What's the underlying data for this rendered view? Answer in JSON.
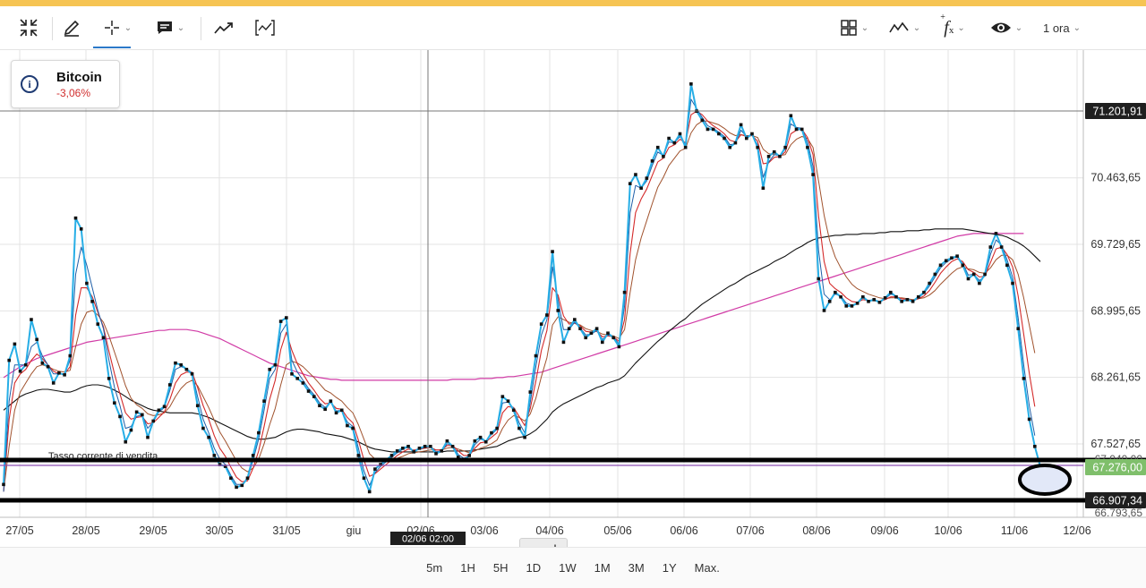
{
  "toolbar": {
    "tools": [
      {
        "name": "fullscreen-exit-icon"
      },
      {
        "name": "pencil-icon"
      },
      {
        "name": "crosshair-icon"
      },
      {
        "name": "comment-icon"
      },
      {
        "name": "trend-icon"
      },
      {
        "name": "indicator-icon"
      }
    ],
    "right_tools": [
      {
        "name": "layout-grid-icon"
      },
      {
        "name": "chart-type-icon"
      },
      {
        "name": "function-icon"
      },
      {
        "name": "eye-icon"
      }
    ],
    "interval_label": "1 ora",
    "function_symbol": "f",
    "function_sub": "x",
    "function_sup": "+"
  },
  "info": {
    "name": "Bitcoin",
    "change": "-3,06%"
  },
  "chart_data": {
    "type": "line",
    "symbol": "Bitcoin",
    "interval": "1 ora",
    "y_ticks": [
      "71.201,91",
      "70.463,65",
      "69.729,65",
      "68.995,65",
      "68.261,65",
      "67.527,65",
      "67.276,00",
      "66.907,34",
      "66.793,65"
    ],
    "y_tick_values": [
      71201.91,
      70463.65,
      69729.65,
      68995.65,
      68261.65,
      67527.65,
      67276.0,
      66907.34,
      66793.65
    ],
    "ylim": [
      66750,
      71750
    ],
    "x_labels": [
      "27/05",
      "28/05",
      "29/05",
      "30/05",
      "31/05",
      "giu",
      "02/06",
      "03/06",
      "04/06",
      "05/06",
      "06/06",
      "07/06",
      "08/06",
      "09/06",
      "10/06",
      "11/06",
      "12/06"
    ],
    "crosshair_label": "02/06 02:00",
    "price_labels": {
      "high_line": "71.201,91",
      "current": "67.276,00",
      "low_line": "66.907,34",
      "partial": "67.040,00"
    },
    "annotation": "Tasso corrente di vendita",
    "colors": {
      "price": "#27aee6",
      "ma_fast": "#1f5fa8",
      "ma_red": "#d42a2a",
      "ma_brown": "#a0522d",
      "ma_black": "#111111",
      "ma_magenta": "#d13ba6",
      "current_price_bg": "#7fbf6b"
    },
    "price_series": [
      67080,
      68450,
      68630,
      68330,
      68400,
      68900,
      68680,
      68420,
      68380,
      68200,
      68310,
      68290,
      68500,
      70020,
      69900,
      69300,
      69100,
      68850,
      68700,
      68250,
      67980,
      67830,
      67550,
      67680,
      67880,
      67850,
      67600,
      67780,
      67900,
      67940,
      68180,
      68420,
      68400,
      68350,
      68300,
      67950,
      67700,
      67600,
      67400,
      67300,
      67280,
      67150,
      67050,
      67070,
      67150,
      67400,
      67650,
      68000,
      68350,
      68400,
      68880,
      68920,
      68300,
      68250,
      68200,
      68110,
      68050,
      67950,
      67910,
      68000,
      67870,
      67900,
      67730,
      67700,
      67400,
      67150,
      67000,
      67250,
      67300,
      67350,
      67400,
      67450,
      67480,
      67500,
      67440,
      67480,
      67500,
      67500,
      67420,
      67450,
      67560,
      67500,
      67380,
      67350,
      67400,
      67560,
      67600,
      67550,
      67650,
      67700,
      68050,
      68000,
      67900,
      67700,
      67600,
      68100,
      68500,
      68850,
      68950,
      69650,
      69000,
      68650,
      68800,
      68900,
      68800,
      68700,
      68750,
      68800,
      68650,
      68750,
      68700,
      68600,
      69200,
      70400,
      70500,
      70350,
      70460,
      70650,
      70800,
      70700,
      70900,
      70850,
      70950,
      70800,
      71500,
      71200,
      71100,
      71000,
      71000,
      70950,
      70900,
      70800,
      70850,
      71050,
      70900,
      70950,
      70800,
      70350,
      70700,
      70750,
      70700,
      70800,
      71150,
      71000,
      71000,
      70800,
      70500,
      69350,
      69000,
      69100,
      69200,
      69150,
      69050,
      69050,
      69080,
      69150,
      69100,
      69120,
      69090,
      69140,
      69200,
      69150,
      69100,
      69120,
      69100,
      69150,
      69200,
      69300,
      69400,
      69500,
      69550,
      69580,
      69600,
      69500,
      69350,
      69400,
      69300,
      69400,
      69700,
      69850,
      69700,
      69500,
      69300,
      68800,
      68250,
      67800,
      67500,
      67276
    ],
    "ma_fast": [
      67000,
      68000,
      68400,
      68400,
      68400,
      68600,
      68650,
      68500,
      68400,
      68300,
      68300,
      68300,
      68450,
      69400,
      69700,
      69500,
      69250,
      69000,
      68800,
      68450,
      68150,
      67950,
      67700,
      67720,
      67830,
      67850,
      67700,
      67770,
      67880,
      67930,
      68120,
      68350,
      68380,
      68360,
      68310,
      68050,
      67800,
      67650,
      67480,
      67360,
      67300,
      67180,
      67080,
      67080,
      67140,
      67350,
      67580,
      67900,
      68250,
      68350,
      68750,
      68850,
      68450,
      68320,
      68230,
      68140,
      68070,
      67980,
      67930,
      67990,
      67890,
      67900,
      67770,
      67720,
      67480,
      67230,
      67070,
      67210,
      67280,
      67330,
      67380,
      67430,
      67470,
      67490,
      67450,
      67470,
      67490,
      67500,
      67440,
      67450,
      67530,
      67510,
      67410,
      67370,
      67390,
      67520,
      67580,
      67560,
      67630,
      67690,
      67980,
      67990,
      67920,
      67760,
      67650,
      67990,
      68380,
      68730,
      68900,
      69480,
      69120,
      68790,
      68790,
      68870,
      68810,
      68730,
      68740,
      68780,
      68680,
      68730,
      68710,
      68630,
      69050,
      70080,
      70380,
      70350,
      70430,
      70600,
      70750,
      70710,
      70860,
      70850,
      70920,
      70830,
      71330,
      71230,
      71130,
      71040,
      71010,
      70970,
      70920,
      70830,
      70840,
      70990,
      70920,
      70940,
      70830,
      70470,
      70640,
      70720,
      70710,
      70780,
      71060,
      71020,
      71010,
      70860,
      70590,
      69660,
      69180,
      69120,
      69180,
      69160,
      69080,
      69060,
      69080,
      69140,
      69110,
      69120,
      69100,
      69130,
      69180,
      69160,
      69110,
      69120,
      69110,
      69140,
      69190,
      69270,
      69370,
      69470,
      69530,
      69570,
      69590,
      69520,
      69390,
      69400,
      69330,
      69380,
      69620,
      69780,
      69720,
      69560,
      69370,
      68920,
      68400,
      67950,
      67620
    ],
    "ma_red": [
      67000,
      67800,
      68200,
      68300,
      68350,
      68450,
      68520,
      68470,
      68400,
      68330,
      68300,
      68300,
      68380,
      68950,
      69250,
      69250,
      69150,
      68980,
      68820,
      68550,
      68300,
      68080,
      67870,
      67800,
      67820,
      67830,
      67750,
      67760,
      67820,
      67880,
      68020,
      68200,
      68290,
      68320,
      68320,
      68150,
      67950,
      67800,
      67620,
      67480,
      67390,
      67270,
      67160,
      67110,
      67120,
      67260,
      67450,
      67720,
      68020,
      68230,
      68570,
      68760,
      68560,
      68410,
      68300,
      68200,
      68120,
      68030,
      67970,
      67980,
      67920,
      67910,
      67820,
      67760,
      67570,
      67350,
      67170,
      67200,
      67250,
      67300,
      67350,
      67400,
      67440,
      67470,
      67460,
      67470,
      67480,
      67490,
      67460,
      67460,
      67510,
      67510,
      67450,
      67400,
      67400,
      67480,
      67540,
      67550,
      67600,
      67650,
      67870,
      67940,
      67930,
      67830,
      67730,
      67920,
      68220,
      68560,
      68780,
      69250,
      69170,
      68940,
      68850,
      68860,
      68830,
      68770,
      68760,
      68770,
      68710,
      68720,
      68710,
      68660,
      68900,
      69630,
      70080,
      70230,
      70340,
      70490,
      70640,
      70680,
      70800,
      70830,
      70890,
      70850,
      71160,
      71200,
      71160,
      71090,
      71040,
      71000,
      70950,
      70880,
      70860,
      70940,
      70920,
      70930,
      70870,
      70620,
      70630,
      70690,
      70700,
      70750,
      70950,
      70990,
      71000,
      70910,
      70720,
      70040,
      69540,
      69300,
      69240,
      69200,
      69140,
      69100,
      69090,
      69120,
      69110,
      69110,
      69100,
      69120,
      69150,
      69150,
      69130,
      69120,
      69110,
      69130,
      69160,
      69220,
      69310,
      69410,
      69480,
      69540,
      69570,
      69540,
      69450,
      69420,
      69370,
      69380,
      69530,
      69680,
      69700,
      69620,
      69480,
      69160,
      68740,
      68310,
      67940
    ],
    "ma_brown": [
      67000,
      67500,
      67900,
      68100,
      68200,
      68300,
      68380,
      68400,
      68380,
      68350,
      68330,
      68320,
      68340,
      68600,
      68850,
      68980,
      69000,
      68950,
      68870,
      68720,
      68540,
      68360,
      68170,
      68030,
      67960,
      67920,
      67860,
      67840,
      67850,
      67870,
      67940,
      68050,
      68140,
      68200,
      68230,
      68170,
      68050,
      67930,
      67790,
      67660,
      67560,
      67450,
      67340,
      67260,
      67220,
      67260,
      67360,
      67530,
      67740,
      67920,
      68180,
      68400,
      68440,
      68420,
      68380,
      68320,
      68260,
      68190,
      68120,
      68090,
      68040,
      68000,
      67930,
      67870,
      67740,
      67580,
      67420,
      67360,
      67340,
      67340,
      67350,
      67370,
      67390,
      67420,
      67430,
      67440,
      67450,
      67460,
      67460,
      67460,
      67480,
      67490,
      67470,
      67450,
      67430,
      67450,
      67480,
      67500,
      67530,
      67570,
      67700,
      67790,
      67840,
      67820,
      67780,
      67860,
      68030,
      68270,
      68480,
      68840,
      68930,
      68900,
      68870,
      68860,
      68840,
      68800,
      68780,
      68770,
      68740,
      68730,
      68720,
      68690,
      68790,
      69200,
      69560,
      69800,
      69990,
      70180,
      70360,
      70470,
      70600,
      70680,
      70760,
      70790,
      70960,
      71050,
      71090,
      71090,
      71070,
      71050,
      71010,
      70960,
      70930,
      70940,
      70930,
      70930,
      70910,
      70780,
      70730,
      70720,
      70710,
      70720,
      70830,
      70890,
      70920,
      70900,
      70800,
      70430,
      70050,
      69770,
      69590,
      69470,
      69370,
      69290,
      69240,
      69210,
      69180,
      69160,
      69140,
      69130,
      69140,
      69140,
      69140,
      69130,
      69120,
      69130,
      69140,
      69170,
      69220,
      69290,
      69350,
      69410,
      69460,
      69480,
      69460,
      69450,
      69420,
      69410,
      69470,
      69560,
      69610,
      69610,
      69560,
      69400,
      69140,
      68840,
      68530
    ],
    "ma_black": [
      67900,
      67950,
      68000,
      68050,
      68080,
      68100,
      68120,
      68130,
      68130,
      68120,
      68110,
      68100,
      68100,
      68120,
      68150,
      68170,
      68180,
      68180,
      68170,
      68150,
      68120,
      68090,
      68050,
      68010,
      67980,
      67950,
      67920,
      67900,
      67890,
      67880,
      67870,
      67870,
      67870,
      67870,
      67870,
      67860,
      67840,
      67820,
      67790,
      67760,
      67730,
      67700,
      67670,
      67640,
      67610,
      67590,
      67580,
      67580,
      67590,
      67600,
      67630,
      67660,
      67680,
      67690,
      67690,
      67680,
      67670,
      67660,
      67640,
      67630,
      67620,
      67610,
      67590,
      67570,
      67550,
      67520,
      67490,
      67470,
      67460,
      67450,
      67440,
      67440,
      67440,
      67440,
      67440,
      67440,
      67440,
      67440,
      67440,
      67440,
      67450,
      67450,
      67450,
      67450,
      67450,
      67460,
      67470,
      67480,
      67490,
      67500,
      67530,
      67560,
      67580,
      67600,
      67610,
      67640,
      67680,
      67740,
      67800,
      67880,
      67930,
      67970,
      68000,
      68030,
      68060,
      68090,
      68120,
      68150,
      68170,
      68200,
      68220,
      68240,
      68280,
      68350,
      68420,
      68480,
      68540,
      68600,
      68660,
      68710,
      68770,
      68820,
      68870,
      68910,
      68970,
      69020,
      69070,
      69110,
      69150,
      69190,
      69230,
      69270,
      69300,
      69340,
      69380,
      69410,
      69440,
      69470,
      69500,
      69540,
      69570,
      69600,
      69640,
      69680,
      69710,
      69750,
      69780,
      69800,
      69810,
      69820,
      69830,
      69830,
      69840,
      69840,
      69840,
      69850,
      69850,
      69850,
      69860,
      69860,
      69870,
      69870,
      69870,
      69880,
      69880,
      69880,
      69890,
      69890,
      69900,
      69900,
      69900,
      69900,
      69900,
      69900,
      69890,
      69880,
      69870,
      69860,
      69850,
      69840,
      69830,
      69810,
      69780,
      69750,
      69710,
      69660,
      69600,
      69540
    ],
    "ma_magenta": [
      68260,
      68300,
      68340,
      68380,
      68410,
      68440,
      68470,
      68490,
      68510,
      68530,
      68550,
      68570,
      68590,
      68610,
      68630,
      68650,
      68660,
      68670,
      68680,
      68690,
      68700,
      68710,
      68720,
      68730,
      68740,
      68750,
      68760,
      68770,
      68780,
      68780,
      68790,
      68790,
      68790,
      68790,
      68780,
      68770,
      68750,
      68730,
      68710,
      68690,
      68660,
      68630,
      68600,
      68570,
      68540,
      68510,
      68480,
      68450,
      68420,
      68400,
      68380,
      68360,
      68340,
      68320,
      68300,
      68280,
      68270,
      68260,
      68250,
      68240,
      68240,
      68230,
      68230,
      68230,
      68230,
      68230,
      68230,
      68230,
      68230,
      68230,
      68230,
      68230,
      68230,
      68230,
      68230,
      68230,
      68230,
      68230,
      68230,
      68230,
      68230,
      68240,
      68240,
      68240,
      68240,
      68240,
      68250,
      68250,
      68250,
      68260,
      68260,
      68270,
      68270,
      68280,
      68290,
      68300,
      68310,
      68320,
      68340,
      68360,
      68380,
      68400,
      68420,
      68440,
      68460,
      68480,
      68500,
      68520,
      68540,
      68560,
      68580,
      68600,
      68620,
      68640,
      68660,
      68680,
      68700,
      68720,
      68740,
      68760,
      68780,
      68800,
      68820,
      68840,
      68860,
      68880,
      68900,
      68920,
      68940,
      68960,
      68980,
      69000,
      69020,
      69040,
      69060,
      69080,
      69100,
      69120,
      69140,
      69160,
      69180,
      69200,
      69220,
      69240,
      69260,
      69280,
      69300,
      69320,
      69340,
      69360,
      69380,
      69400,
      69420,
      69440,
      69460,
      69480,
      69500,
      69520,
      69540,
      69560,
      69580,
      69600,
      69620,
      69640,
      69660,
      69680,
      69700,
      69720,
      69740,
      69760,
      69780,
      69800,
      69820,
      69830,
      69840,
      69850,
      69850,
      69850,
      69850,
      69850,
      69850,
      69850,
      69850,
      69850,
      69850
    ]
  },
  "bottom": {
    "ranges": [
      "5m",
      "1H",
      "5H",
      "1D",
      "1W",
      "1M",
      "3M",
      "1Y",
      "Max."
    ]
  },
  "zoom": {
    "minus": "−",
    "plus": "+"
  },
  "more_menu": "⋮"
}
